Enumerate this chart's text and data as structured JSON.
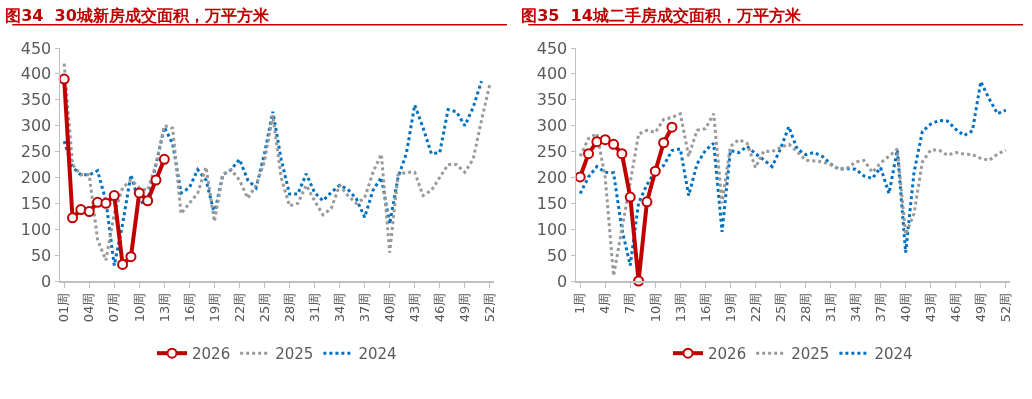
{
  "chart_data": [
    {
      "type": "line",
      "title": "图34  30城新房成交面积，万平方米",
      "categories": [
        "01周",
        null,
        null,
        "04周",
        null,
        null,
        "07周",
        null,
        null,
        "10周",
        null,
        null,
        "13周",
        null,
        null,
        "16周",
        null,
        null,
        "19周",
        null,
        null,
        "22周",
        null,
        null,
        "25周",
        null,
        null,
        "28周",
        null,
        null,
        "31周",
        null,
        null,
        "34周",
        null,
        null,
        "37周",
        null,
        null,
        "40周",
        null,
        null,
        "43周",
        null,
        null,
        "46周",
        null,
        null,
        "49周",
        null,
        null,
        "52周"
      ],
      "ylim": [
        0,
        450
      ],
      "yticks": [
        0,
        50,
        100,
        150,
        200,
        250,
        300,
        350,
        400,
        450
      ],
      "legend": "bottom",
      "series": [
        {
          "name": "2026",
          "color": "#c00000",
          "line_style": "solid",
          "marker": "circle",
          "values": [
            390,
            122,
            138,
            134,
            152,
            150,
            165,
            32,
            47,
            170,
            155,
            195,
            235,
            null,
            null,
            null,
            null,
            null,
            null,
            null,
            null,
            null,
            null,
            null,
            null,
            null,
            null,
            null,
            null,
            null,
            null,
            null,
            null,
            null,
            null,
            null,
            null,
            null,
            null,
            null,
            null,
            null,
            null,
            null,
            null,
            null,
            null,
            null,
            null,
            null,
            null,
            null
          ]
        },
        {
          "name": "2025",
          "color": "#999999",
          "line_style": "dotted",
          "values": [
            420,
            225,
            205,
            205,
            80,
            40,
            130,
            180,
            195,
            180,
            175,
            225,
            300,
            295,
            130,
            150,
            170,
            220,
            115,
            205,
            215,
            195,
            160,
            185,
            231,
            320,
            200,
            145,
            150,
            185,
            155,
            128,
            140,
            185,
            165,
            150,
            160,
            210,
            245,
            55,
            205,
            210,
            210,
            165,
            175,
            200,
            225,
            225,
            210,
            235,
            310,
            380
          ]
        },
        {
          "name": "2024",
          "color": "#0070c0",
          "line_style": "dotted",
          "values": [
            270,
            220,
            205,
            205,
            213,
            155,
            30,
            110,
            205,
            150,
            155,
            225,
            297,
            265,
            170,
            180,
            215,
            195,
            130,
            205,
            215,
            235,
            195,
            180,
            246,
            327,
            235,
            168,
            168,
            207,
            171,
            155,
            171,
            185,
            177,
            159,
            123,
            175,
            200,
            110,
            200,
            246,
            340,
            296,
            246,
            248,
            331,
            327,
            300,
            335,
            386,
            null
          ]
        }
      ]
    },
    {
      "type": "line",
      "title": "图35  14城二手房成交面积，万平方米",
      "categories": [
        "1周",
        null,
        null,
        "4周",
        null,
        null,
        "7周",
        null,
        null,
        "10周",
        null,
        null,
        "13周",
        null,
        null,
        "16周",
        null,
        null,
        "19周",
        null,
        null,
        "22周",
        null,
        null,
        "25周",
        null,
        null,
        "28周",
        null,
        null,
        "31周",
        null,
        null,
        "34周",
        null,
        null,
        "37周",
        null,
        null,
        "40周",
        null,
        null,
        "43周",
        null,
        null,
        "46周",
        null,
        null,
        "49周",
        null,
        null,
        "52周"
      ],
      "ylim": [
        0,
        450
      ],
      "yticks": [
        0,
        50,
        100,
        150,
        200,
        250,
        300,
        350,
        400,
        450
      ],
      "legend": "bottom",
      "series": [
        {
          "name": "2026",
          "color": "#c00000",
          "line_style": "solid",
          "marker": "circle",
          "values": [
            201,
            246,
            269,
            273,
            264,
            246,
            162,
            0,
            153,
            212,
            267,
            297,
            null,
            null,
            null,
            null,
            null,
            null,
            null,
            null,
            null,
            null,
            null,
            null,
            null,
            null,
            null,
            null,
            null,
            null,
            null,
            null,
            null,
            null,
            null,
            null,
            null,
            null,
            null,
            null,
            null,
            null,
            null,
            null,
            null,
            null,
            null,
            null,
            null,
            null,
            null,
            null
          ]
        },
        {
          "name": "2025",
          "color": "#999999",
          "line_style": "dotted",
          "values": [
            241,
            275,
            285,
            200,
            10,
            101,
            190,
            284,
            291,
            287,
            312,
            316,
            323,
            241,
            291,
            294,
            323,
            150,
            260,
            273,
            266,
            219,
            251,
            250,
            258,
            264,
            250,
            233,
            232,
            230,
            225,
            216,
            218,
            230,
            233,
            210,
            228,
            241,
            255,
            90,
            130,
            230,
            253,
            253,
            243,
            248,
            245,
            244,
            237,
            233,
            245,
            253
          ]
        },
        {
          "name": "2024",
          "color": "#0070c0",
          "line_style": "dotted",
          "values": [
            169,
            201,
            221,
            210,
            209,
            100,
            30,
            151,
            186,
            212,
            223,
            252,
            255,
            165,
            226,
            252,
            266,
            95,
            252,
            248,
            260,
            246,
            234,
            221,
            255,
            298,
            255,
            244,
            248,
            241,
            226,
            216,
            217,
            216,
            203,
            198,
            219,
            169,
            253,
            55,
            210,
            289,
            303,
            310,
            309,
            293,
            281,
            290,
            385,
            352,
            323,
            330
          ]
        }
      ]
    }
  ]
}
